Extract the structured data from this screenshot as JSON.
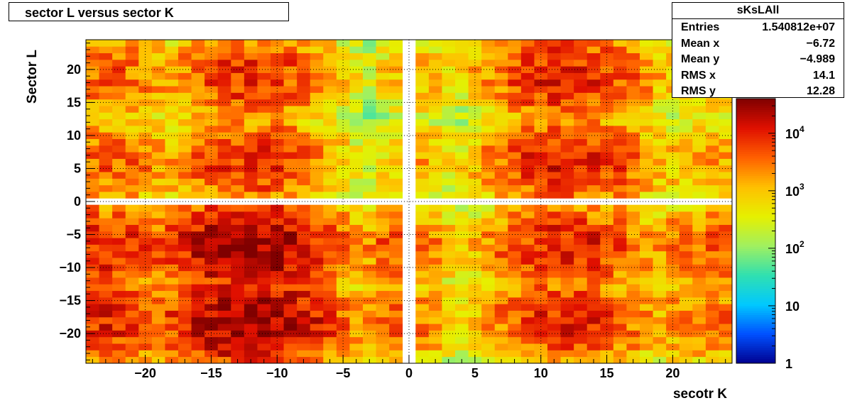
{
  "title": "sector L versus sector K",
  "stats": {
    "name": "sKsLAll",
    "rows": [
      {
        "label": "Entries",
        "value": "1.540812e+07"
      },
      {
        "label": "Mean x",
        "value": "−6.72"
      },
      {
        "label": "Mean y",
        "value": "−4.989"
      },
      {
        "label": "RMS x",
        "value": "14.1"
      },
      {
        "label": "RMS y",
        "value": "12.28"
      }
    ]
  },
  "chart_data": {
    "type": "heatmap",
    "title": "sector L versus sector K",
    "xlabel": "secotr K",
    "ylabel": "Sector L",
    "xlim": [
      -24.5,
      24.5
    ],
    "ylim": [
      -24.5,
      24.5
    ],
    "bins": [
      49,
      49
    ],
    "x_ticks": [
      {
        "value": -20,
        "label": "−20"
      },
      {
        "value": -15,
        "label": "−15"
      },
      {
        "value": -10,
        "label": "−10"
      },
      {
        "value": -5,
        "label": "−5"
      },
      {
        "value": 0,
        "label": "0"
      },
      {
        "value": 5,
        "label": "5"
      },
      {
        "value": 10,
        "label": "10"
      },
      {
        "value": 15,
        "label": "15"
      },
      {
        "value": 20,
        "label": "20"
      }
    ],
    "y_ticks": [
      {
        "value": 20,
        "label": "20"
      },
      {
        "value": 15,
        "label": "15"
      },
      {
        "value": 10,
        "label": "10"
      },
      {
        "value": 5,
        "label": "5"
      },
      {
        "value": 0,
        "label": "0"
      },
      {
        "value": -5,
        "label": "−5"
      },
      {
        "value": -10,
        "label": "−10"
      },
      {
        "value": -15,
        "label": "−15"
      },
      {
        "value": -20,
        "label": "−20"
      }
    ],
    "z_scale": "log",
    "zlim": [
      1,
      40000
    ],
    "z_ticks": [
      {
        "value": 1,
        "base": "1",
        "exp": ""
      },
      {
        "value": 10,
        "base": "10",
        "exp": ""
      },
      {
        "value": 100,
        "base": "10",
        "exp": "2"
      },
      {
        "value": 1000,
        "base": "10",
        "exp": "3"
      },
      {
        "value": 10000,
        "base": "10",
        "exp": "4"
      }
    ],
    "grid": true,
    "empty_row": 0,
    "empty_column": 0,
    "cluster_centers": {
      "columns": [
        -23,
        -12,
        -1,
        1,
        12,
        23
      ],
      "rows": [
        -18,
        -7,
        6,
        19
      ]
    },
    "peak_counts": {
      "-23": {
        "-18": 9000,
        "-7": 9000,
        "6": 4000,
        "19": 4000
      },
      "-12": {
        "-18": 30000,
        "-7": 30000,
        "6": 8000,
        "19": 8000
      },
      "-1": {
        "-18": 5000,
        "-7": 6000,
        "6": 900,
        "19": 800
      },
      "1": {
        "-18": 3000,
        "-7": 3000,
        "6": 1500,
        "19": 1500
      },
      "12": {
        "-18": 9000,
        "-7": 10000,
        "6": 10000,
        "19": 10000
      },
      "23": {
        "-18": 3000,
        "-7": 4000,
        "6": 1500,
        "19": 1500
      }
    },
    "colorscale": [
      "#00008f",
      "#0050ff",
      "#00c8ff",
      "#30e0b0",
      "#a0f060",
      "#e6f000",
      "#ffc000",
      "#ff6000",
      "#e01000",
      "#800000"
    ]
  }
}
